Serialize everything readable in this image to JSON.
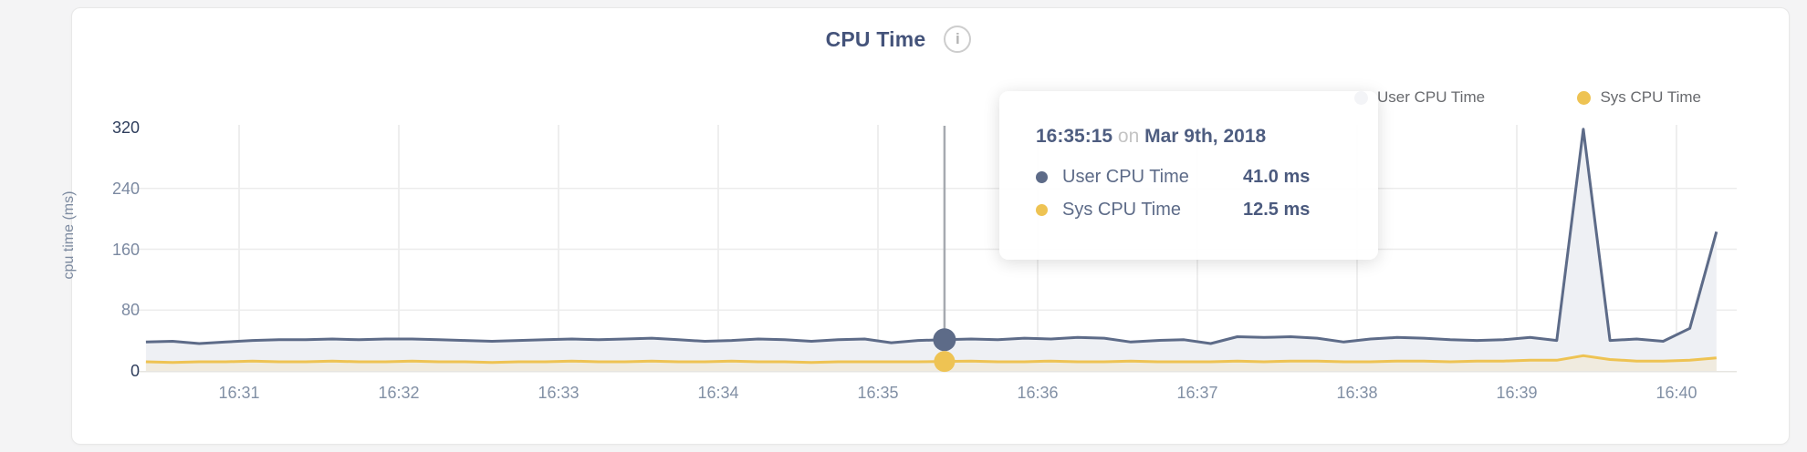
{
  "header": {
    "title": "CPU Time",
    "info_icon": "i"
  },
  "y_axis": {
    "title": "cpu time (ms)"
  },
  "legend": {
    "items": [
      {
        "name": "User CPU Time",
        "color": "#5d6b88"
      },
      {
        "name": "Sys CPU Time",
        "color": "#eec353"
      }
    ]
  },
  "tooltip": {
    "time": "16:35:15",
    "preposition": "on",
    "date": "Mar 9th, 2018",
    "rows": [
      {
        "label": "User CPU Time",
        "value": "41.0 ms",
        "color": "#5d6b88"
      },
      {
        "label": "Sys CPU Time",
        "value": "12.5 ms",
        "color": "#eec353"
      }
    ]
  },
  "chart_data": {
    "type": "area",
    "title": "CPU Time",
    "ylabel": "cpu time (ms)",
    "ylim": [
      0,
      320
    ],
    "y_ticks": [
      0,
      80,
      160,
      240,
      320
    ],
    "x_tick_labels": [
      "16:31",
      "16:32",
      "16:33",
      "16:34",
      "16:35",
      "16:36",
      "16:37",
      "16:38",
      "16:39",
      "16:40"
    ],
    "x_tick_seconds_after_1630": [
      60,
      120,
      180,
      240,
      300,
      360,
      420,
      480,
      540,
      600
    ],
    "points_start_second_after_1630": 25,
    "points_step_seconds": 10,
    "grid": true,
    "legend_position": "top-right",
    "series": [
      {
        "name": "User CPU Time",
        "color": "#5d6b88",
        "fill": "#eef0f4",
        "values": [
          38,
          39,
          36,
          38,
          40,
          41,
          41,
          42,
          41,
          42,
          42,
          41,
          40,
          39,
          40,
          41,
          42,
          41,
          42,
          43,
          41,
          39,
          40,
          42,
          41,
          39,
          41,
          42,
          37,
          40,
          41,
          42,
          41,
          43,
          42,
          44,
          43,
          38,
          40,
          41,
          36,
          45,
          44,
          45,
          43,
          38,
          42,
          44,
          43,
          41,
          40,
          41,
          44,
          40,
          318,
          40,
          42,
          39,
          56,
          183
        ]
      },
      {
        "name": "Sys CPU Time",
        "color": "#eec353",
        "fill": "#f0ebdf",
        "values": [
          12,
          11,
          12,
          12,
          13,
          12,
          12,
          13,
          12,
          12,
          13,
          12,
          12,
          11,
          12,
          12,
          13,
          12,
          12,
          13,
          12,
          12,
          13,
          12,
          12,
          11,
          12,
          12,
          12,
          12,
          12.5,
          13,
          12,
          12,
          13,
          12,
          12,
          13,
          12,
          12,
          12,
          13,
          12,
          13,
          13,
          12,
          12,
          13,
          13,
          12,
          13,
          13,
          14,
          14,
          20,
          15,
          13,
          13,
          14,
          17
        ]
      }
    ],
    "selected": {
      "index": 30,
      "time": "16:35:15",
      "date": "Mar 9th, 2018",
      "values": {
        "User CPU Time": 41.0,
        "Sys CPU Time": 12.5
      }
    }
  }
}
